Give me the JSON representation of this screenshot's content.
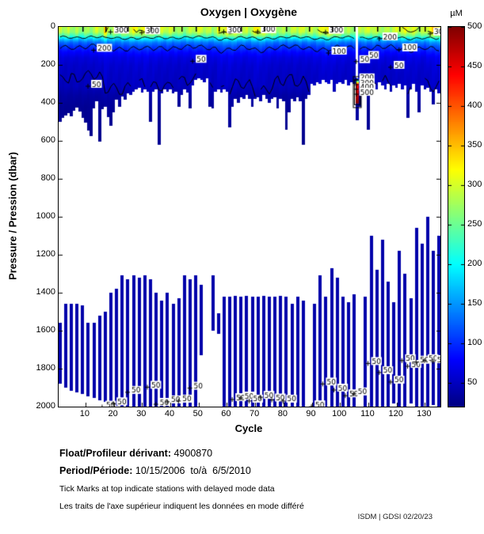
{
  "title": "Oxygen | Oxygène",
  "colorbar": {
    "unit_label": "µM",
    "min": 20,
    "max": 500,
    "ticks": [
      50,
      100,
      150,
      200,
      250,
      300,
      350,
      400,
      450,
      500
    ],
    "colormap": "jet"
  },
  "footer": {
    "float_label": "Float/Profileur dérivant:",
    "float_value": " 4900870",
    "period_label": "Period/Période:",
    "period_value": " 10/15/2006  to/à  6/5/2010",
    "note_en": "Tick Marks at top indicate stations with delayed mode data",
    "note_fr": "Les traits de l'axe supérieur indiquent les données en mode différé",
    "credit": "ISDM | GDSI 02/20/23"
  },
  "chart_data": {
    "type": "heatmap",
    "title": "Oxygen | Oxygène",
    "xlabel": "Cycle",
    "ylabel": "Pressure / Pression (dbar)",
    "x_ticks": [
      10,
      20,
      30,
      40,
      50,
      60,
      70,
      80,
      90,
      100,
      110,
      120,
      130
    ],
    "x_range": [
      0.5,
      135.5
    ],
    "y_ticks": [
      0,
      200,
      400,
      600,
      800,
      1000,
      1200,
      1400,
      1600,
      1800,
      2000
    ],
    "y_range": [
      0,
      2000
    ],
    "y_inverted": true,
    "value_unit": "µM",
    "value_range": [
      20,
      500
    ],
    "n_cycles": 135,
    "surface_value": [
      285,
      280,
      278,
      282,
      276,
      280,
      284,
      279,
      281,
      283,
      280,
      278,
      282,
      286,
      285,
      288,
      330,
      300,
      295,
      300,
      298,
      295,
      300,
      297,
      302,
      299,
      304,
      310,
      306,
      308,
      322,
      318,
      305,
      310,
      300,
      295,
      290,
      288,
      292,
      290,
      288,
      292,
      286,
      290,
      287,
      291,
      289,
      293,
      288,
      290,
      292,
      289,
      287,
      293,
      290,
      294,
      318,
      322,
      316,
      320,
      324,
      318,
      310,
      306,
      300,
      298,
      302,
      299,
      310,
      322,
      326,
      320,
      310,
      300,
      295,
      292,
      290,
      288,
      292,
      290,
      286,
      290,
      287,
      292,
      288,
      290,
      285,
      288,
      292,
      295,
      298,
      305,
      310,
      318,
      324,
      320,
      312,
      308,
      300,
      298,
      295,
      292,
      290,
      288,
      290,
      290,
      288,
      292,
      290,
      287,
      292,
      296,
      290,
      294,
      298,
      292,
      295,
      290,
      293,
      296,
      298,
      300,
      304,
      308,
      312,
      310,
      306,
      300,
      298,
      295,
      310,
      318,
      325,
      330,
      320
    ],
    "section_bottom_depth": [
      500,
      480,
      465,
      455,
      470,
      440,
      425,
      445,
      480,
      505,
      545,
      575,
      430,
      390,
      605,
      435,
      420,
      475,
      520,
      450,
      385,
      420,
      365,
      385,
      350,
      360,
      340,
      330,
      320,
      345,
      330,
      340,
      500,
      340,
      330,
      620,
      350,
      330,
      340,
      330,
      350,
      340,
      420,
      360,
      330,
      345,
      430,
      310,
      280,
      270,
      280,
      290,
      270,
      420,
      430,
      340,
      330,
      345,
      330,
      340,
      530,
      420,
      380,
      400,
      370,
      380,
      360,
      380,
      420,
      380,
      370,
      390,
      360,
      380,
      400,
      380,
      370,
      430,
      380,
      390,
      540,
      450,
      380,
      390,
      370,
      390,
      620,
      380,
      360,
      300,
      310,
      290,
      300,
      280,
      290,
      300,
      280,
      340,
      300,
      290,
      300,
      280,
      310,
      290,
      300,
      490,
      420,
      300,
      310,
      540,
      350,
      300,
      330,
      290,
      310,
      330,
      300,
      340,
      310,
      320,
      300,
      330,
      310,
      480,
      330,
      300,
      340,
      450,
      310,
      330,
      320,
      340,
      410,
      330,
      350
    ],
    "profile_shape": [
      [
        0,
        1.0
      ],
      [
        25,
        0.97
      ],
      [
        45,
        0.82
      ],
      [
        60,
        0.64
      ],
      [
        80,
        0.46
      ],
      [
        100,
        0.37
      ],
      [
        130,
        0.285
      ],
      [
        160,
        0.225
      ],
      [
        200,
        0.195
      ],
      [
        250,
        0.18
      ],
      [
        310,
        0.17
      ],
      [
        360,
        0.13
      ],
      [
        420,
        0.105
      ],
      [
        700,
        0.09
      ],
      [
        2000,
        0.085
      ]
    ],
    "contour_levels": [
      300,
      200,
      100,
      50
    ],
    "contour_labels": [
      {
        "t": "300",
        "c": 20,
        "d": 14
      },
      {
        "t": "300",
        "c": 31,
        "d": 18
      },
      {
        "t": "300",
        "c": 60,
        "d": 13
      },
      {
        "t": "300",
        "c": 72,
        "d": 12
      },
      {
        "t": "300",
        "c": 96,
        "d": 15
      },
      {
        "t": "300",
        "c": 133,
        "d": 24
      },
      {
        "t": "200",
        "c": 14,
        "d": 110
      },
      {
        "t": "200",
        "c": 115,
        "d": 50
      },
      {
        "t": "100",
        "c": 97,
        "d": 125
      },
      {
        "t": "100",
        "c": 122,
        "d": 108
      },
      {
        "t": "50",
        "c": 12,
        "d": 300
      },
      {
        "t": "50",
        "c": 49,
        "d": 168
      },
      {
        "t": "50",
        "c": 110,
        "d": 148
      },
      {
        "t": "50",
        "c": 119,
        "d": 200
      }
    ],
    "missing_cycle": 106,
    "anomaly": {
      "cycle": 106,
      "no_data_above_depth": 270,
      "high_value_top_depth": 300,
      "high_value_bottom_depth": 400,
      "value": 500,
      "labels": [
        {
          "t": "50",
          "d": 170
        },
        {
          "t": "200",
          "d": 266
        },
        {
          "t": "300",
          "d": 292
        },
        {
          "t": "400",
          "d": 316
        },
        {
          "t": "500",
          "d": 342
        }
      ]
    },
    "deep_bars": [
      [
        1,
        1560,
        1880
      ],
      [
        3,
        1460,
        1900
      ],
      [
        5,
        1460,
        1915
      ],
      [
        7,
        1460,
        1925
      ],
      [
        9,
        1465,
        1935
      ],
      [
        11,
        1560,
        1945
      ],
      [
        13,
        1560,
        1955
      ],
      [
        15,
        1520,
        1965
      ],
      [
        17,
        1500,
        1975
      ],
      [
        19,
        1400,
        1985
      ],
      [
        21,
        1380,
        1995
      ],
      [
        23,
        1310,
        2000
      ],
      [
        25,
        1330,
        2000
      ],
      [
        27,
        1310,
        2000
      ],
      [
        29,
        1320,
        2000
      ],
      [
        31,
        1310,
        2000
      ],
      [
        33,
        1330,
        2000
      ],
      [
        35,
        1400,
        2000
      ],
      [
        37,
        1440,
        2000
      ],
      [
        39,
        1400,
        2000
      ],
      [
        41,
        1460,
        2000
      ],
      [
        43,
        1430,
        2000
      ],
      [
        45,
        1310,
        2000
      ],
      [
        47,
        1330,
        2000
      ],
      [
        49,
        1310,
        2000
      ],
      [
        51,
        1360,
        1730
      ],
      [
        55,
        1310,
        1600
      ],
      [
        57,
        1510,
        1615
      ],
      [
        59,
        1420,
        2000
      ],
      [
        61,
        1420,
        2000
      ],
      [
        63,
        1415,
        2000
      ],
      [
        65,
        1420,
        2000
      ],
      [
        67,
        1415,
        2000
      ],
      [
        69,
        1420,
        2000
      ],
      [
        71,
        1420,
        2000
      ],
      [
        73,
        1415,
        2000
      ],
      [
        75,
        1420,
        2000
      ],
      [
        77,
        1420,
        2000
      ],
      [
        79,
        1415,
        2000
      ],
      [
        81,
        1420,
        2000
      ],
      [
        83,
        1460,
        2000
      ],
      [
        85,
        1420,
        2000
      ],
      [
        87,
        1440,
        2000
      ],
      [
        91,
        1460,
        2000
      ],
      [
        93,
        1310,
        2000
      ],
      [
        95,
        1420,
        2000
      ],
      [
        97,
        1270,
        2000
      ],
      [
        99,
        1320,
        2000
      ],
      [
        101,
        1420,
        2000
      ],
      [
        103,
        1450,
        2000
      ],
      [
        105,
        1410,
        2000
      ],
      [
        109,
        1420,
        2000
      ],
      [
        111,
        1100,
        2000
      ],
      [
        113,
        1280,
        2000
      ],
      [
        115,
        1120,
        2000
      ],
      [
        117,
        1340,
        2000
      ],
      [
        119,
        1450,
        1985
      ],
      [
        121,
        1180,
        2000
      ],
      [
        123,
        1300,
        2000
      ],
      [
        125,
        1430,
        1985
      ],
      [
        127,
        1060,
        2000
      ],
      [
        129,
        1140,
        2000
      ],
      [
        131,
        1000,
        2000
      ],
      [
        133,
        1180,
        1990
      ],
      [
        135,
        1100,
        2000
      ]
    ],
    "deep_bar_value": 40,
    "deep_contour_labels": [
      [
        17,
        1990
      ],
      [
        21,
        1972
      ],
      [
        26,
        1912
      ],
      [
        33,
        1885
      ],
      [
        36,
        1975
      ],
      [
        40,
        1962
      ],
      [
        44,
        1958
      ],
      [
        48,
        1890
      ],
      [
        63,
        1950
      ],
      [
        66,
        1942
      ],
      [
        69,
        1958
      ],
      [
        73,
        1938
      ],
      [
        77,
        1952
      ],
      [
        81,
        1958
      ],
      [
        91,
        1988
      ],
      [
        95,
        1868
      ],
      [
        99,
        1900
      ],
      [
        103,
        1930
      ],
      [
        106,
        1920
      ],
      [
        111,
        1760
      ],
      [
        115,
        1808
      ],
      [
        119,
        1858
      ],
      [
        123,
        1745
      ],
      [
        125,
        1775
      ],
      [
        128,
        1753
      ],
      [
        131,
        1745
      ],
      [
        134,
        1750
      ]
    ],
    "deep_contour_label_text": "50",
    "delayed_mode_tick_cycles": [
      9,
      17,
      25,
      33,
      41,
      44,
      49,
      57,
      65,
      73,
      81,
      89,
      97,
      105,
      113,
      121,
      128,
      130
    ]
  }
}
